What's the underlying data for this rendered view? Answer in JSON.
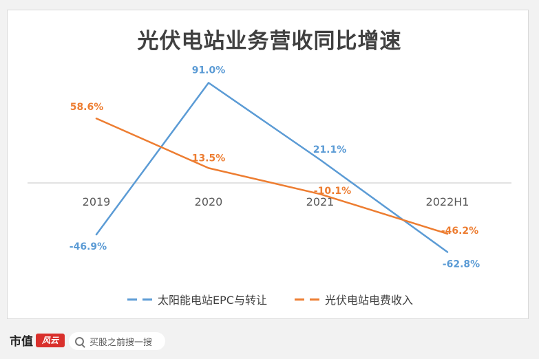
{
  "chart_data": {
    "type": "line",
    "title": "光伏电站业务营收同比增速",
    "categories": [
      "2019",
      "2020",
      "2021",
      "2022H1"
    ],
    "series": [
      {
        "name": "太阳能电站EPC与转让",
        "values": [
          -46.9,
          91.0,
          21.1,
          -62.8
        ],
        "labels": [
          "-46.9%",
          "91.0%",
          "21.1%",
          "-62.8%"
        ],
        "color": "#5b9bd5"
      },
      {
        "name": "光伏电站电费收入",
        "values": [
          58.6,
          13.5,
          -10.1,
          -46.2
        ],
        "labels": [
          "58.6%",
          "13.5%",
          "-10.1%",
          "-46.2%"
        ],
        "color": "#ed7d31"
      }
    ],
    "ylim": [
      -80,
      100
    ],
    "grid": false,
    "legend": "bottom"
  },
  "footer": {
    "logo_text": "市值",
    "logo_mark": "风云",
    "search_placeholder": "买股之前搜一搜"
  }
}
